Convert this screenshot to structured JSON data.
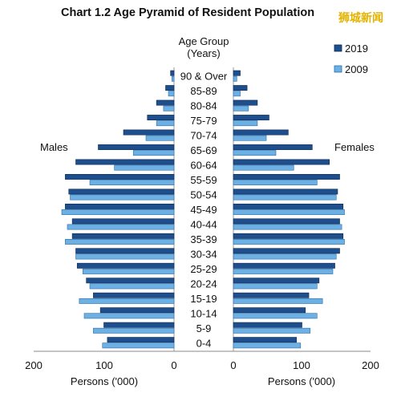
{
  "watermark": "狮城新闻",
  "chart_data": {
    "type": "bar",
    "title": "Chart 1.2  Age Pyramid of Resident Population",
    "center_header": [
      "Age Group",
      "(Years)"
    ],
    "left_label": "Males",
    "right_label": "Females",
    "xlabel_left": "Persons ('000)",
    "xlabel_right": "Persons ('000)",
    "xlim": [
      0,
      200
    ],
    "ticks": [
      0,
      100,
      200
    ],
    "categories": [
      "90 & Over",
      "85-89",
      "80-84",
      "75-79",
      "70-74",
      "65-69",
      "60-64",
      "55-59",
      "50-54",
      "45-49",
      "40-44",
      "35-39",
      "30-34",
      "25-29",
      "20-24",
      "15-19",
      "10-14",
      "5-9",
      "0-4"
    ],
    "legend_placement": "top-right",
    "series": [
      {
        "name": "2019",
        "color": "#1f4e8c",
        "males": [
          5,
          12,
          25,
          38,
          72,
          108,
          140,
          155,
          150,
          155,
          145,
          145,
          140,
          138,
          125,
          115,
          105,
          100,
          95
        ],
        "females": [
          10,
          20,
          35,
          52,
          80,
          115,
          140,
          155,
          152,
          160,
          155,
          160,
          155,
          148,
          125,
          110,
          105,
          100,
          92
        ]
      },
      {
        "name": "2009",
        "color": "#6cb0e4",
        "males": [
          3,
          8,
          15,
          25,
          40,
          58,
          85,
          120,
          148,
          160,
          152,
          155,
          140,
          130,
          120,
          135,
          128,
          115,
          102
        ],
        "females": [
          5,
          10,
          22,
          35,
          48,
          62,
          88,
          122,
          150,
          162,
          158,
          162,
          150,
          145,
          122,
          130,
          122,
          112,
          98
        ]
      }
    ]
  }
}
